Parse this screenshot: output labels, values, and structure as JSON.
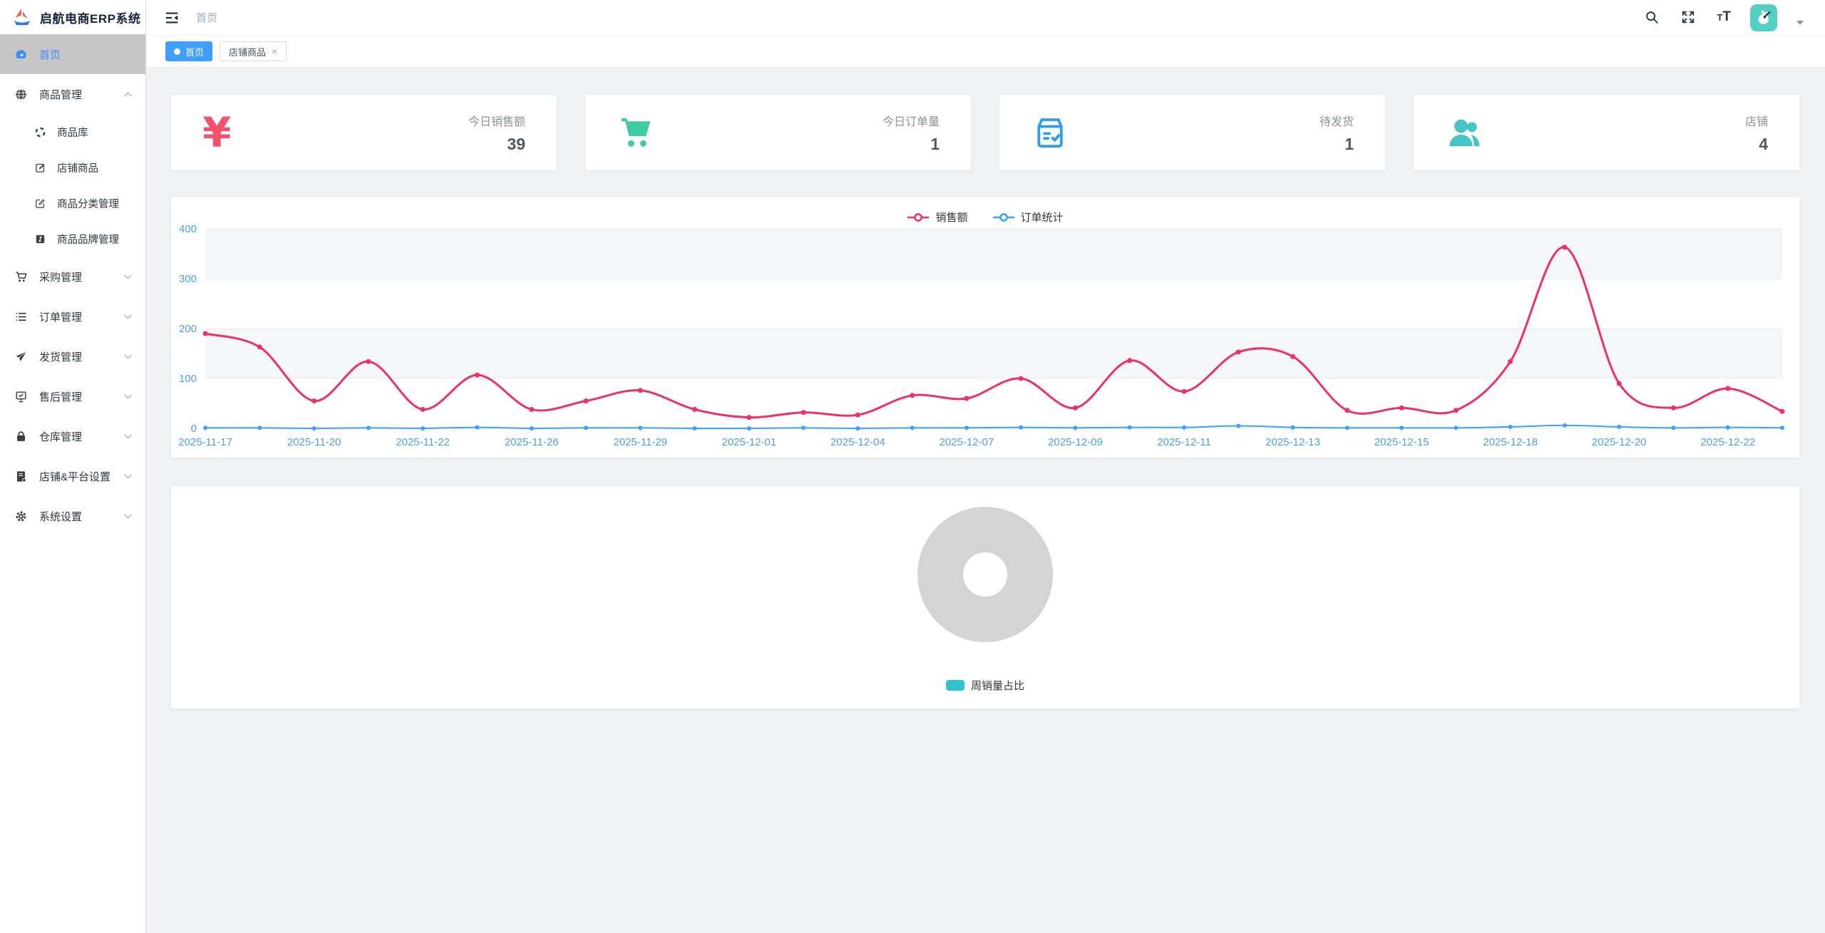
{
  "app": {
    "title": "启航电商ERP系统"
  },
  "colors": {
    "accent": "#409eff",
    "axis-label": "#4aa0e8",
    "sales-line": "#ee2f6a",
    "orders-line": "#3aa1ff",
    "stat-sales": "#f4516c",
    "stat-orders": "#3ecca4",
    "stat-ship": "#2f9ee8",
    "stat-shop": "#45c5c5",
    "pie-placeholder": "#d4d4d4",
    "pie-legend": "#2fc4c9",
    "avatar-bg": "#55cec6"
  },
  "sidebar": {
    "items": [
      {
        "id": "home",
        "label": "首页",
        "icon": "dashboard-icon",
        "active": true,
        "chevron": null
      },
      {
        "id": "goods",
        "label": "商品管理",
        "icon": "globe-icon",
        "chevron": "up",
        "expanded": true,
        "children": [
          {
            "id": "goods-repo",
            "label": "商品库",
            "icon": "compass-icon"
          },
          {
            "id": "shop-goods",
            "label": "店铺商品",
            "icon": "edit-icon"
          },
          {
            "id": "goods-category",
            "label": "商品分类管理",
            "icon": "edit-square-icon"
          },
          {
            "id": "goods-brand",
            "label": "商品品牌管理",
            "icon": "brand-icon"
          }
        ]
      },
      {
        "id": "purchase",
        "label": "采购管理",
        "icon": "cart-line-icon",
        "chevron": "down"
      },
      {
        "id": "orders",
        "label": "订单管理",
        "icon": "list-icon",
        "chevron": "down"
      },
      {
        "id": "shipping",
        "label": "发货管理",
        "icon": "send-icon",
        "chevron": "down"
      },
      {
        "id": "aftersale",
        "label": "售后管理",
        "icon": "board-check-icon",
        "chevron": "down"
      },
      {
        "id": "warehouse",
        "label": "仓库管理",
        "icon": "lock-icon",
        "chevron": "down"
      },
      {
        "id": "shop-platform",
        "label": "店铺&平台设置",
        "icon": "ledger-icon",
        "chevron": "down"
      },
      {
        "id": "system",
        "label": "系统设置",
        "icon": "gear-icon",
        "chevron": "down"
      }
    ]
  },
  "topbar": {
    "breadcrumb": "首页"
  },
  "tags": [
    {
      "id": "home",
      "label": "首页",
      "active": true,
      "closable": false
    },
    {
      "id": "shop-goods",
      "label": "店铺商品",
      "active": false,
      "closable": true
    }
  ],
  "stats": [
    {
      "id": "today-sales",
      "label": "今日销售额",
      "value": "39",
      "icon": "yen-icon",
      "color_key": "stat-sales"
    },
    {
      "id": "today-orders",
      "label": "今日订单量",
      "value": "1",
      "icon": "cart-filled-icon",
      "color_key": "stat-orders"
    },
    {
      "id": "to-ship",
      "label": "待发货",
      "value": "1",
      "icon": "package-check-icon",
      "color_key": "stat-ship"
    },
    {
      "id": "shops",
      "label": "店铺",
      "value": "4",
      "icon": "users-icon",
      "color_key": "stat-shop"
    }
  ],
  "chart_data": [
    {
      "type": "line",
      "title": "",
      "legend": [
        "销售额",
        "订单统计"
      ],
      "legend_position": "top-center",
      "smooth": true,
      "grid": true,
      "ylim": [
        0,
        400
      ],
      "y_ticks": [
        0,
        100,
        200,
        300,
        400
      ],
      "x_labels": [
        "2025-11-17",
        "2025-11-20",
        "2025-11-22",
        "2025-11-26",
        "2025-11-29",
        "2025-12-01",
        "2025-12-04",
        "2025-12-07",
        "2025-12-09",
        "2025-12-11",
        "2025-12-13",
        "2025-12-15",
        "2025-12-18",
        "2025-12-20",
        "2025-12-22"
      ],
      "label_point_indices": [
        0,
        2,
        4,
        6,
        8,
        10,
        12,
        14,
        16,
        18,
        20,
        22,
        24,
        26,
        28
      ],
      "series": [
        {
          "name": "销售额",
          "color_key": "sales-line",
          "values": [
            190,
            163,
            55,
            134,
            38,
            107,
            38,
            55,
            76,
            38,
            22,
            32,
            27,
            66,
            60,
            100,
            41,
            136,
            74,
            153,
            144,
            36,
            41,
            36,
            134,
            363,
            90,
            41,
            80,
            34
          ]
        },
        {
          "name": "订单统计",
          "color_key": "orders-line",
          "values": [
            1,
            1,
            0,
            1,
            0,
            2,
            0,
            1,
            1,
            0,
            0,
            1,
            0,
            1,
            1,
            2,
            1,
            2,
            2,
            5,
            2,
            1,
            1,
            1,
            3,
            6,
            3,
            1,
            2,
            1
          ]
        }
      ]
    },
    {
      "type": "pie",
      "title": "",
      "legend": [
        "周销量占比"
      ],
      "legend_position": "bottom-center",
      "placeholder": true,
      "series": [
        {
          "name": "周销量占比",
          "values": []
        }
      ]
    }
  ]
}
